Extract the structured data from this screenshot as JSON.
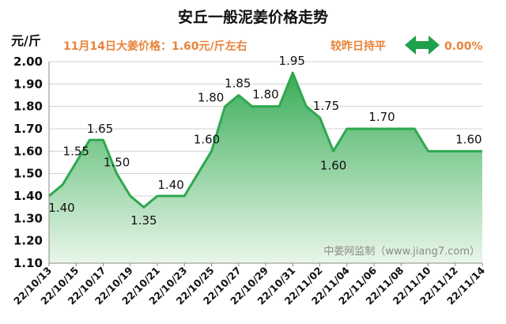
{
  "header": {
    "title": "安丘一般泥姜价格走势",
    "unit": "元/斤",
    "price_note": "11月14日大姜价格：1.60元/斤左右",
    "change_label": "较昨日持平",
    "change_value": "0.00%",
    "change_icon": "double-arrow-icon",
    "change_color": "#1fa04a",
    "watermark": "中姜网监制（www.jiang7.com）"
  },
  "chart_data": {
    "type": "area",
    "x": [
      "22/10/13",
      "22/10/14",
      "22/10/15",
      "22/10/16",
      "22/10/17",
      "22/10/18",
      "22/10/19",
      "22/10/20",
      "22/10/21",
      "22/10/22",
      "22/10/23",
      "22/10/24",
      "22/10/25",
      "22/10/26",
      "22/10/27",
      "22/10/28",
      "22/10/29",
      "22/10/30",
      "22/10/31",
      "22/11/01",
      "22/11/02",
      "22/11/03",
      "22/11/04",
      "22/11/05",
      "22/11/06",
      "22/11/07",
      "22/11/08",
      "22/11/09",
      "22/11/10",
      "22/11/11",
      "22/11/12",
      "22/11/13",
      "22/11/14"
    ],
    "values": [
      1.4,
      1.45,
      1.55,
      1.65,
      1.65,
      1.5,
      1.4,
      1.35,
      1.4,
      1.4,
      1.4,
      1.5,
      1.6,
      1.8,
      1.85,
      1.8,
      1.8,
      1.8,
      1.95,
      1.8,
      1.75,
      1.6,
      1.7,
      1.7,
      1.7,
      1.7,
      1.7,
      1.7,
      1.6,
      1.6,
      1.6,
      1.6,
      1.6
    ],
    "x_tick_labels": [
      "22/10/13",
      "22/10/15",
      "22/10/17",
      "22/10/19",
      "22/10/21",
      "22/10/23",
      "22/10/25",
      "22/10/27",
      "22/10/29",
      "22/10/31",
      "22/11/02",
      "22/11/04",
      "22/11/06",
      "22/11/08",
      "22/11/10",
      "22/11/12",
      "22/11/14"
    ],
    "y_tick_labels": [
      "1.10",
      "1.20",
      "1.30",
      "1.40",
      "1.50",
      "1.60",
      "1.70",
      "1.80",
      "1.90",
      "2.00"
    ],
    "ylim": [
      1.1,
      2.0
    ],
    "grid": true,
    "line_color": "#2ea84f",
    "fill_color_top": "#2ea84f",
    "fill_color_bottom": "#e6f5e6",
    "data_labels": [
      {
        "x": "22/10/13",
        "value": 1.4,
        "text": "1.40"
      },
      {
        "x": "22/10/15",
        "value": 1.55,
        "text": "1.55"
      },
      {
        "x": "22/10/17",
        "value": 1.65,
        "text": "1.65"
      },
      {
        "x": "22/10/18",
        "value": 1.5,
        "text": "1.50"
      },
      {
        "x": "22/10/20",
        "value": 1.35,
        "text": "1.35"
      },
      {
        "x": "22/10/22",
        "value": 1.4,
        "text": "1.40"
      },
      {
        "x": "22/10/25",
        "value": 1.6,
        "text": "1.60"
      },
      {
        "x": "22/10/26",
        "value": 1.8,
        "text": "1.80"
      },
      {
        "x": "22/10/27",
        "value": 1.85,
        "text": "1.85"
      },
      {
        "x": "22/10/29",
        "value": 1.8,
        "text": "1.80"
      },
      {
        "x": "22/10/31",
        "value": 1.95,
        "text": "1.95"
      },
      {
        "x": "22/11/02",
        "value": 1.75,
        "text": "1.75"
      },
      {
        "x": "22/11/03",
        "value": 1.6,
        "text": "1.60"
      },
      {
        "x": "22/11/06",
        "value": 1.7,
        "text": "1.70"
      },
      {
        "x": "22/11/13",
        "value": 1.6,
        "text": "1.60"
      }
    ]
  }
}
